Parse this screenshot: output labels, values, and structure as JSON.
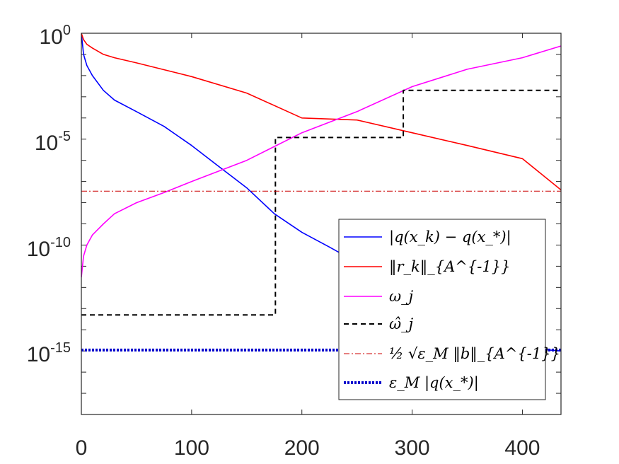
{
  "chart_data": {
    "type": "line",
    "title": "",
    "xlabel": "",
    "ylabel": "",
    "xlim": [
      0,
      435
    ],
    "ylim": [
      1e-18,
      1
    ],
    "yscale": "log",
    "grid": false,
    "legend_position": "bottom-right",
    "x_ticks": [
      0,
      100,
      200,
      300,
      400
    ],
    "y_ticks": [
      {
        "base": "10",
        "exp": "0",
        "value": 1
      },
      {
        "base": "10",
        "exp": "-5",
        "value": 1e-05
      },
      {
        "base": "10",
        "exp": "-10",
        "value": 1e-10
      },
      {
        "base": "10",
        "exp": "-15",
        "value": 1e-15
      }
    ],
    "series": [
      {
        "name": "|q(x_k) − q(x_*)|",
        "color": "#0000ff",
        "style": "solid",
        "x": [
          0,
          2,
          5,
          10,
          20,
          30,
          50,
          75,
          100,
          125,
          150,
          175,
          200,
          225,
          250,
          275,
          300,
          325,
          350,
          375,
          400,
          425,
          435
        ],
        "y": [
          1,
          0.1,
          0.03,
          0.01,
          0.002,
          0.0007,
          0.0002,
          4e-05,
          5e-06,
          5e-07,
          5e-08,
          3e-09,
          4e-10,
          8e-11,
          1.5e-11,
          3e-12,
          5e-13,
          1e-13,
          2e-14,
          5e-15,
          1.5e-15,
          1.1e-15,
          1e-15
        ]
      },
      {
        "name": "‖r_k‖_{A^{-1}}",
        "color": "#ff0000",
        "style": "solid",
        "x": [
          0,
          2,
          5,
          10,
          20,
          30,
          50,
          100,
          150,
          200,
          250,
          300,
          350,
          400,
          435
        ],
        "y": [
          1,
          0.5,
          0.3,
          0.2,
          0.1,
          0.07,
          0.04,
          0.009,
          0.0015,
          0.0001,
          8e-05,
          2e-05,
          5e-06,
          1.2e-06,
          4e-08
        ]
      },
      {
        "name": "ω_j",
        "color": "#ff00ff",
        "style": "solid",
        "x": [
          0,
          2,
          5,
          10,
          20,
          30,
          50,
          75,
          100,
          150,
          200,
          250,
          300,
          350,
          400,
          435
        ],
        "y": [
          3e-12,
          3e-11,
          1e-10,
          3e-10,
          1e-09,
          3e-09,
          1e-08,
          3e-08,
          1e-07,
          1e-06,
          2e-05,
          0.0002,
          0.003,
          0.02,
          0.07,
          0.25
        ]
      },
      {
        "name": "ω̂_j",
        "color": "#000000",
        "style": "dashed",
        "x": [
          0,
          176,
          176,
          292,
          292,
          435
        ],
        "y": [
          5e-14,
          5e-14,
          1.2e-05,
          1.2e-05,
          0.002,
          0.002
        ]
      },
      {
        "name": "½ √ε_M ‖b‖_{A^{-1}}",
        "color": "#cc0000",
        "style": "dashdot",
        "x": [
          0,
          435
        ],
        "y": [
          3.5e-08,
          3.5e-08
        ]
      },
      {
        "name": "ε_M |q(x_*)|",
        "color": "#0000cc",
        "style": "dotted",
        "x": [
          0,
          435
        ],
        "y": [
          1.1e-15,
          1.1e-15
        ]
      }
    ]
  }
}
